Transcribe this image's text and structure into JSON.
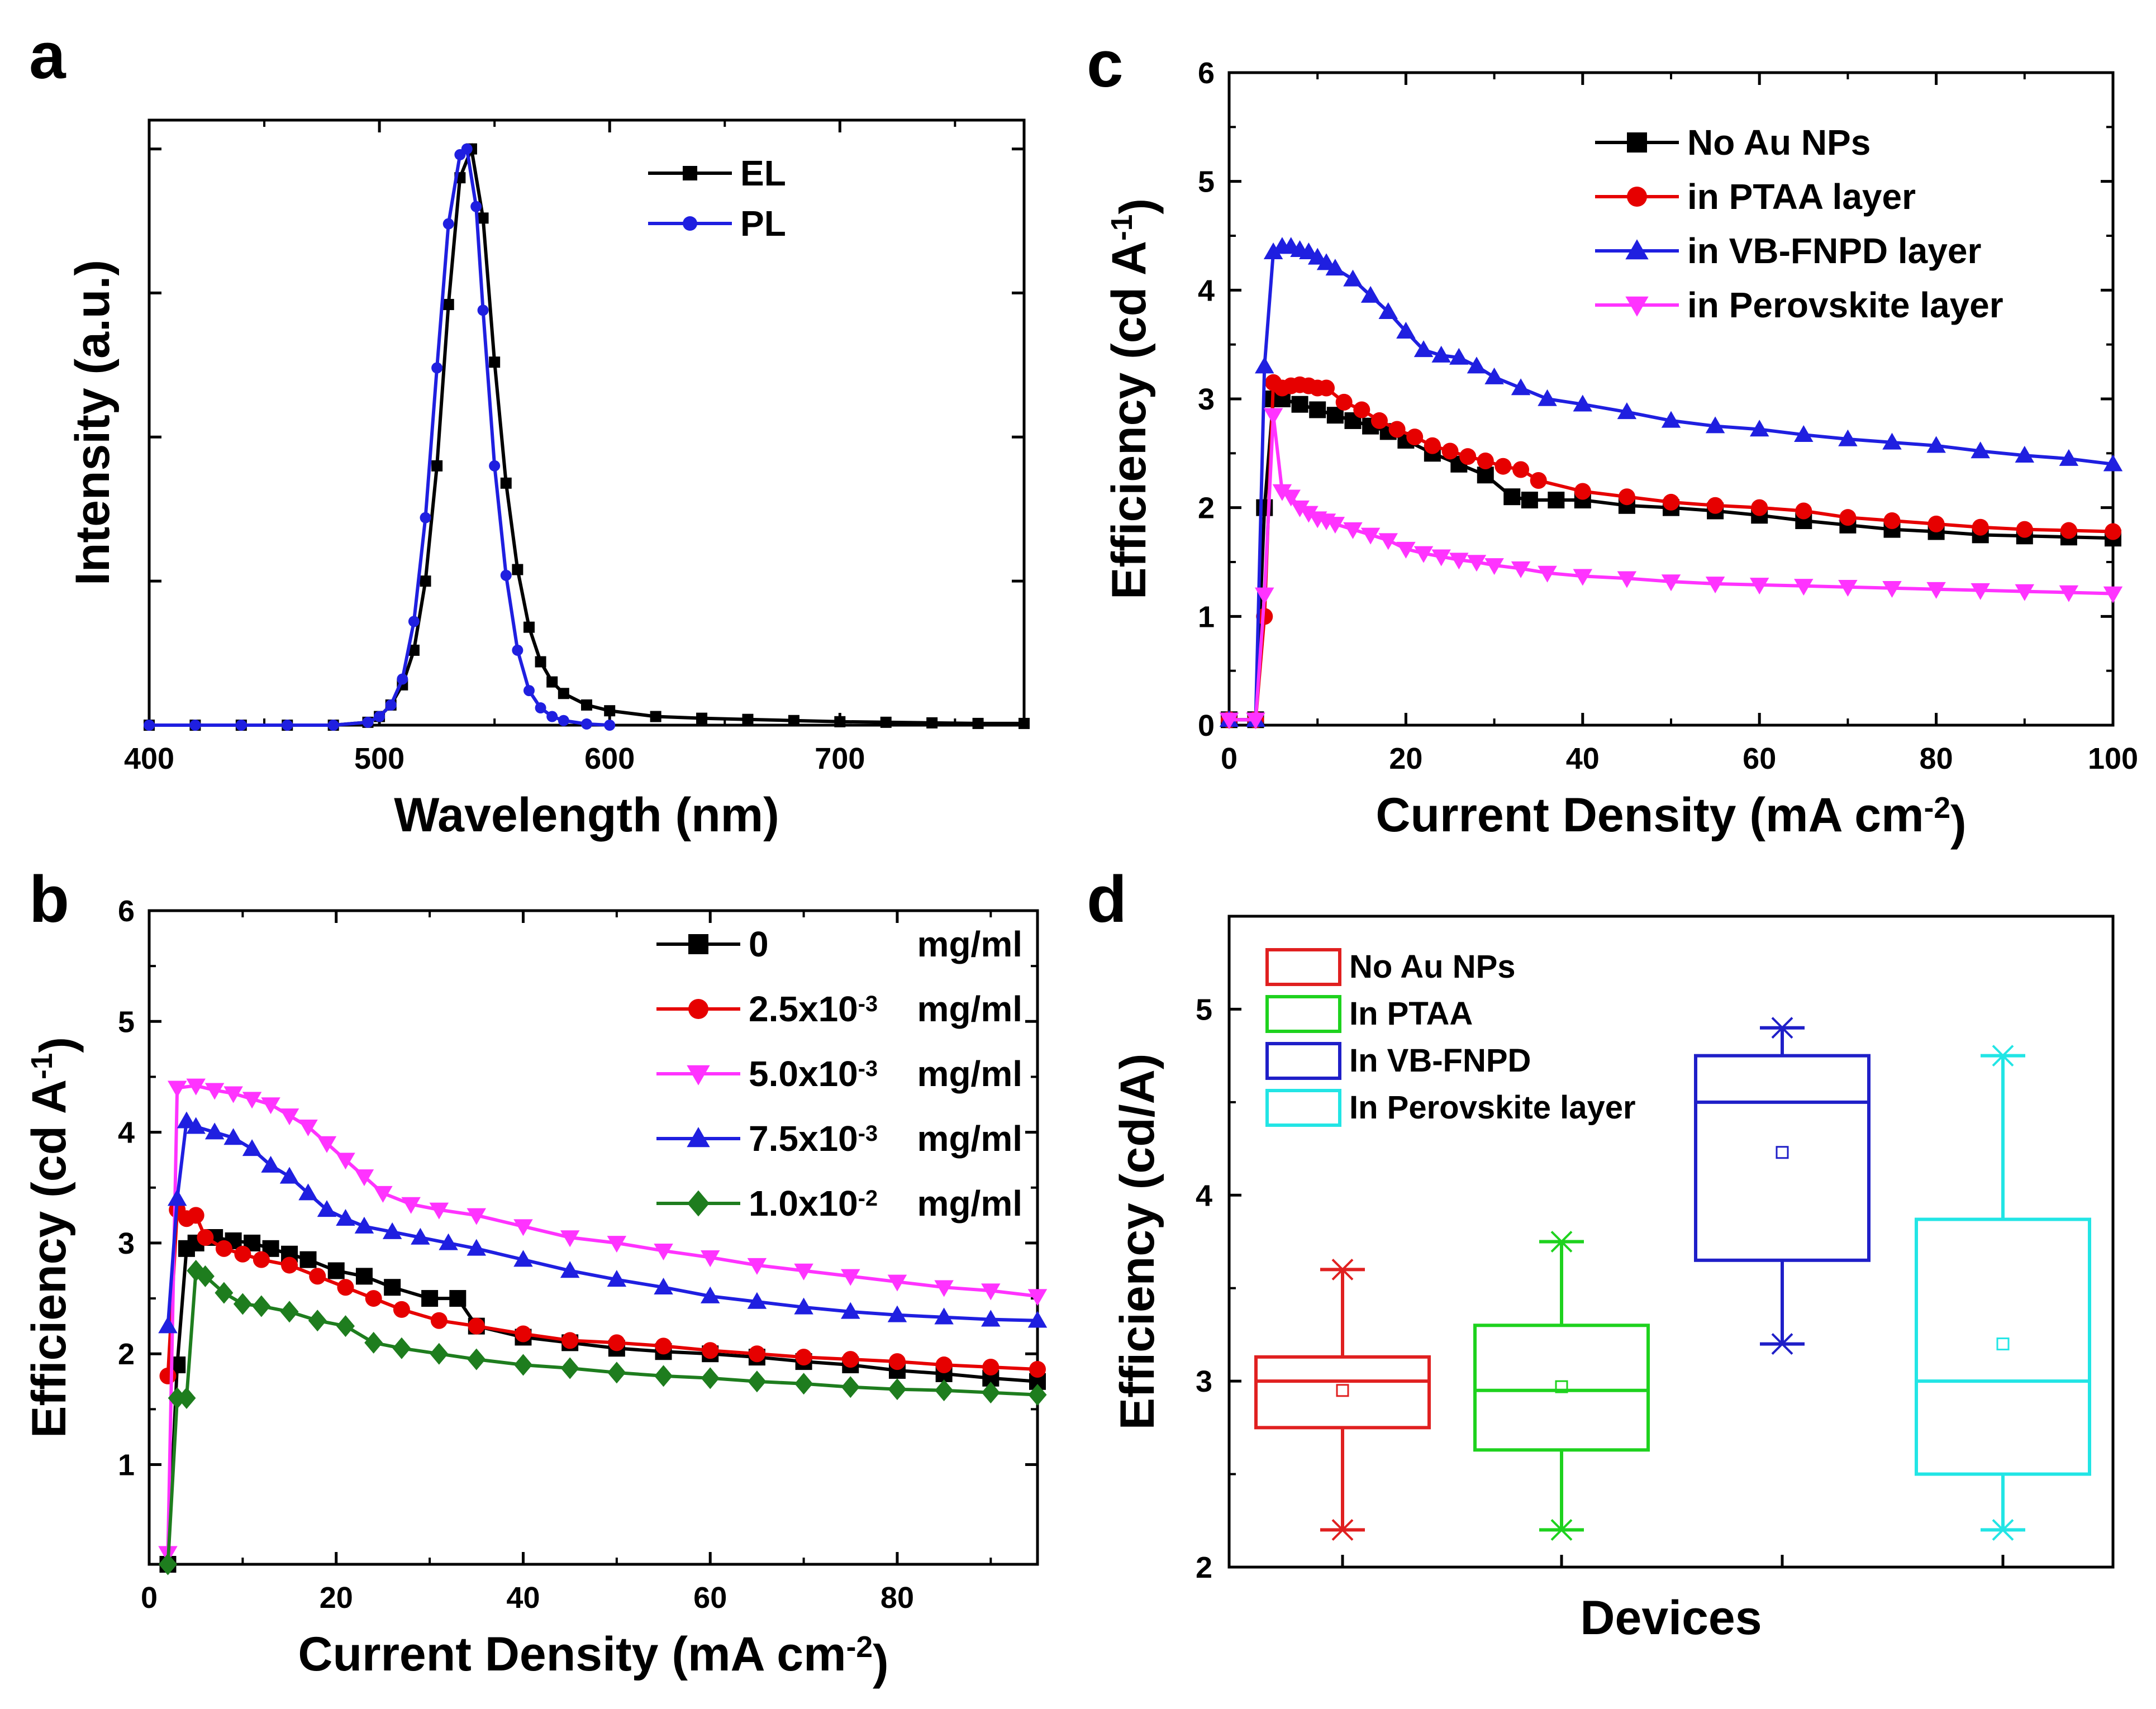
{
  "chart_data": [
    {
      "panel": "a",
      "type": "line",
      "title": "",
      "xlabel": "Wavelength (nm)",
      "ylabel": "Intensity (a.u.)",
      "xlim": [
        400,
        780
      ],
      "ylim": [
        0,
        1.05
      ],
      "xticks": [
        "400",
        "500",
        "600",
        "700"
      ],
      "legend_position": "top-right",
      "series": [
        {
          "name": "EL",
          "color": "#000000",
          "marker": "square",
          "x": [
            400,
            420,
            440,
            460,
            480,
            495,
            500,
            505,
            510,
            515,
            520,
            525,
            530,
            535,
            540,
            545,
            550,
            555,
            560,
            565,
            570,
            575,
            580,
            590,
            600,
            620,
            640,
            660,
            680,
            700,
            720,
            740,
            760,
            780
          ],
          "y": [
            0,
            0,
            0,
            0,
            0,
            0.005,
            0.015,
            0.035,
            0.07,
            0.13,
            0.25,
            0.45,
            0.73,
            0.95,
            1.0,
            0.88,
            0.63,
            0.42,
            0.27,
            0.17,
            0.11,
            0.075,
            0.055,
            0.035,
            0.025,
            0.015,
            0.012,
            0.01,
            0.008,
            0.006,
            0.005,
            0.004,
            0.003,
            0.003
          ]
        },
        {
          "name": "PL",
          "color": "#1f1fe0",
          "marker": "circle",
          "x": [
            400,
            420,
            440,
            460,
            480,
            495,
            500,
            505,
            510,
            515,
            520,
            525,
            530,
            535,
            538,
            542,
            545,
            550,
            555,
            560,
            565,
            570,
            575,
            580,
            590,
            600
          ],
          "y": [
            0,
            0,
            0,
            0,
            0,
            0.005,
            0.015,
            0.035,
            0.08,
            0.18,
            0.36,
            0.62,
            0.87,
            0.99,
            1.0,
            0.9,
            0.72,
            0.45,
            0.26,
            0.13,
            0.06,
            0.03,
            0.015,
            0.008,
            0.002,
            0
          ]
        }
      ]
    },
    {
      "panel": "b",
      "type": "line",
      "title": "",
      "xlabel": "Current Density (mA cm",
      "xlabel_sup": "-2",
      "xlabel_end": ")",
      "ylabel": "Efficiency (cd A",
      "ylabel_sup": "-1",
      "ylabel_end": ")",
      "xlim": [
        0,
        95
      ],
      "ylim": [
        0.1,
        6
      ],
      "xticks": [
        "0",
        "20",
        "40",
        "60",
        "80"
      ],
      "yticks": [
        "1",
        "2",
        "3",
        "4",
        "5",
        "6"
      ],
      "legend_position": "top-right",
      "series": [
        {
          "name": "0",
          "name_sup": "",
          "unit": "mg/ml",
          "color": "#000000",
          "marker": "square",
          "x": [
            2,
            3,
            4,
            5,
            7,
            9,
            11,
            13,
            15,
            17,
            20,
            23,
            26,
            30,
            33,
            35,
            40,
            45,
            50,
            55,
            60,
            65,
            70,
            75,
            80,
            85,
            90,
            95
          ],
          "y": [
            0.1,
            1.9,
            2.95,
            3.0,
            3.05,
            3.02,
            3.0,
            2.95,
            2.9,
            2.85,
            2.75,
            2.7,
            2.6,
            2.5,
            2.5,
            2.25,
            2.15,
            2.1,
            2.05,
            2.02,
            2.0,
            1.97,
            1.93,
            1.9,
            1.85,
            1.82,
            1.78,
            1.75
          ]
        },
        {
          "name": "2.5x10",
          "name_sup": "-3",
          "unit": "mg/ml",
          "color": "#e60000",
          "marker": "circle",
          "x": [
            2,
            3,
            4,
            5,
            6,
            8,
            10,
            12,
            15,
            18,
            21,
            24,
            27,
            31,
            35,
            40,
            45,
            50,
            55,
            60,
            65,
            70,
            75,
            80,
            85,
            90,
            95
          ],
          "y": [
            1.8,
            3.3,
            3.22,
            3.25,
            3.05,
            2.95,
            2.9,
            2.85,
            2.8,
            2.7,
            2.6,
            2.5,
            2.4,
            2.3,
            2.25,
            2.18,
            2.12,
            2.1,
            2.07,
            2.03,
            2.0,
            1.97,
            1.95,
            1.93,
            1.9,
            1.88,
            1.86
          ]
        },
        {
          "name": "5.0x10",
          "name_sup": "-3",
          "unit": "mg/ml",
          "color": "#ff33ff",
          "marker": "triangle-down",
          "x": [
            2,
            3,
            5,
            7,
            9,
            11,
            13,
            15,
            17,
            19,
            21,
            23,
            25,
            28,
            31,
            35,
            40,
            45,
            50,
            55,
            60,
            65,
            70,
            75,
            80,
            85,
            90,
            95
          ],
          "y": [
            0.2,
            4.4,
            4.42,
            4.38,
            4.35,
            4.3,
            4.25,
            4.15,
            4.05,
            3.9,
            3.75,
            3.6,
            3.45,
            3.35,
            3.3,
            3.25,
            3.15,
            3.05,
            3.0,
            2.93,
            2.87,
            2.8,
            2.75,
            2.7,
            2.65,
            2.6,
            2.57,
            2.52
          ]
        },
        {
          "name": "7.5x10",
          "name_sup": "-3",
          "unit": "mg/ml",
          "color": "#1f1fe0",
          "marker": "triangle",
          "x": [
            2,
            3,
            4,
            5,
            7,
            9,
            11,
            13,
            15,
            17,
            19,
            21,
            23,
            26,
            29,
            32,
            35,
            40,
            45,
            50,
            55,
            60,
            65,
            70,
            75,
            80,
            85,
            90,
            95
          ],
          "y": [
            2.25,
            3.4,
            4.1,
            4.05,
            4.0,
            3.95,
            3.85,
            3.7,
            3.6,
            3.45,
            3.3,
            3.22,
            3.15,
            3.1,
            3.05,
            3.0,
            2.95,
            2.85,
            2.75,
            2.67,
            2.6,
            2.52,
            2.47,
            2.42,
            2.38,
            2.35,
            2.33,
            2.31,
            2.3
          ]
        },
        {
          "name": "1.0x10",
          "name_sup": "-2",
          "unit": "mg/ml",
          "color": "#1e7d1e",
          "marker": "diamond",
          "x": [
            2,
            3,
            4,
            5,
            6,
            8,
            10,
            12,
            15,
            18,
            21,
            24,
            27,
            31,
            35,
            40,
            45,
            50,
            55,
            60,
            65,
            70,
            75,
            80,
            85,
            90,
            95
          ],
          "y": [
            0.1,
            1.6,
            1.6,
            2.75,
            2.7,
            2.55,
            2.45,
            2.43,
            2.38,
            2.3,
            2.25,
            2.1,
            2.05,
            2.0,
            1.95,
            1.9,
            1.87,
            1.83,
            1.8,
            1.78,
            1.75,
            1.73,
            1.7,
            1.68,
            1.67,
            1.65,
            1.63
          ]
        }
      ]
    },
    {
      "panel": "c",
      "type": "line",
      "title": "",
      "xlabel": "Current Density (mA cm",
      "xlabel_sup": "-2",
      "xlabel_end": ")",
      "ylabel": "Efficiency (cd A",
      "ylabel_sup": "-1",
      "ylabel_end": ")",
      "xlim": [
        0,
        100
      ],
      "ylim": [
        0,
        6
      ],
      "xticks": [
        "0",
        "20",
        "40",
        "60",
        "80",
        "100"
      ],
      "yticks": [
        "0",
        "1",
        "2",
        "3",
        "4",
        "5",
        "6"
      ],
      "legend_position": "top-right",
      "series": [
        {
          "name": "No Au NPs",
          "color": "#000000",
          "marker": "square",
          "x": [
            0,
            3,
            4,
            5,
            6,
            8,
            10,
            12,
            14,
            16,
            18,
            20,
            23,
            26,
            29,
            32,
            34,
            37,
            40,
            45,
            50,
            55,
            60,
            65,
            70,
            75,
            80,
            85,
            90,
            95,
            100
          ],
          "y": [
            0.05,
            0.05,
            2.0,
            3.0,
            3.0,
            2.95,
            2.9,
            2.85,
            2.8,
            2.75,
            2.7,
            2.62,
            2.5,
            2.4,
            2.3,
            2.1,
            2.07,
            2.07,
            2.07,
            2.02,
            2.0,
            1.97,
            1.93,
            1.88,
            1.84,
            1.8,
            1.78,
            1.75,
            1.74,
            1.73,
            1.72
          ]
        },
        {
          "name": "in PTAA layer",
          "color": "#e60000",
          "marker": "circle",
          "x": [
            0,
            3,
            4,
            5,
            6,
            7,
            8,
            9,
            10,
            11,
            13,
            15,
            17,
            19,
            21,
            23,
            25,
            27,
            29,
            31,
            33,
            35,
            40,
            45,
            50,
            55,
            60,
            65,
            70,
            75,
            80,
            85,
            90,
            95,
            100
          ],
          "y": [
            0.05,
            0.05,
            1.0,
            3.15,
            3.1,
            3.12,
            3.13,
            3.12,
            3.1,
            3.1,
            2.97,
            2.9,
            2.8,
            2.72,
            2.65,
            2.57,
            2.52,
            2.47,
            2.43,
            2.38,
            2.35,
            2.25,
            2.15,
            2.1,
            2.05,
            2.02,
            2.0,
            1.97,
            1.91,
            1.88,
            1.85,
            1.82,
            1.8,
            1.79,
            1.78
          ]
        },
        {
          "name": "in VB-FNPD layer",
          "color": "#1f1fe0",
          "marker": "triangle",
          "x": [
            0,
            3,
            4,
            5,
            6,
            7,
            8,
            9,
            10,
            11,
            12,
            14,
            16,
            18,
            20,
            22,
            24,
            26,
            28,
            30,
            33,
            36,
            40,
            45,
            50,
            55,
            60,
            65,
            70,
            75,
            80,
            85,
            90,
            95,
            100
          ],
          "y": [
            0.05,
            0.05,
            3.3,
            4.35,
            4.4,
            4.4,
            4.37,
            4.35,
            4.3,
            4.25,
            4.2,
            4.1,
            3.95,
            3.8,
            3.62,
            3.45,
            3.4,
            3.38,
            3.3,
            3.2,
            3.1,
            3.0,
            2.95,
            2.88,
            2.8,
            2.75,
            2.72,
            2.67,
            2.63,
            2.6,
            2.57,
            2.52,
            2.48,
            2.45,
            2.4
          ]
        },
        {
          "name": "in Perovskite layer",
          "color": "#ff33ff",
          "marker": "triangle-down",
          "x": [
            0,
            3,
            4,
            5,
            6,
            7,
            8,
            9,
            10,
            11,
            12,
            14,
            16,
            18,
            20,
            22,
            24,
            26,
            28,
            30,
            33,
            36,
            40,
            45,
            50,
            55,
            60,
            65,
            70,
            75,
            80,
            85,
            90,
            95,
            100
          ],
          "y": [
            0.05,
            0.05,
            1.2,
            2.85,
            2.15,
            2.1,
            2.0,
            1.95,
            1.9,
            1.88,
            1.85,
            1.8,
            1.75,
            1.7,
            1.62,
            1.58,
            1.55,
            1.52,
            1.5,
            1.47,
            1.44,
            1.4,
            1.37,
            1.35,
            1.32,
            1.3,
            1.29,
            1.28,
            1.27,
            1.26,
            1.25,
            1.24,
            1.23,
            1.22,
            1.21
          ]
        }
      ]
    },
    {
      "panel": "d",
      "type": "box",
      "title": "",
      "xlabel": "Devices",
      "ylabel": "Efficiency (cd/A)",
      "ylim": [
        2,
        5.5
      ],
      "yticks": [
        "2",
        "3",
        "4",
        "5"
      ],
      "legend_position": "top-left",
      "boxes": [
        {
          "name": "No Au NPs",
          "color": "#e02020",
          "min": 2.2,
          "q1": 2.75,
          "median": 3.0,
          "q3": 3.13,
          "max": 3.6,
          "mean": 2.95
        },
        {
          "name": "In PTAA",
          "color": "#1ed21e",
          "min": 2.2,
          "q1": 2.63,
          "median": 2.95,
          "q3": 3.3,
          "max": 3.75,
          "mean": 2.97
        },
        {
          "name": "In VB-FNPD",
          "color": "#1f1fc8",
          "min": 3.2,
          "q1": 3.65,
          "median": 4.5,
          "q3": 4.75,
          "max": 4.9,
          "mean": 4.23
        },
        {
          "name": "In Perovskite layer",
          "color": "#22e5e5",
          "min": 2.2,
          "q1": 2.5,
          "median": 3.0,
          "q3": 3.87,
          "max": 4.75,
          "mean": 3.2
        }
      ]
    }
  ],
  "panel_labels": [
    "a",
    "b",
    "c",
    "d"
  ]
}
